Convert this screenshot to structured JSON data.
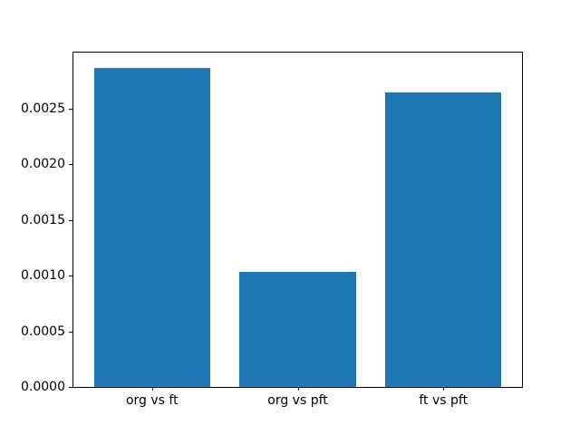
{
  "chart_data": {
    "type": "bar",
    "title": "",
    "xlabel": "",
    "ylabel": "",
    "categories": [
      "org vs ft",
      "org vs pft",
      "ft vs pft"
    ],
    "values": [
      0.00286,
      0.00103,
      0.00264
    ],
    "yticks": [
      "0.0000",
      "0.0005",
      "0.0010",
      "0.0015",
      "0.0020",
      "0.0025"
    ],
    "ylim": [
      0,
      0.003
    ],
    "xlim": [
      -0.54,
      2.54
    ],
    "bar_width": 0.8,
    "bar_color": "#1f77b4",
    "axis_color": "#000000",
    "background_color": "#ffffff",
    "grid": false,
    "legend": false
  }
}
